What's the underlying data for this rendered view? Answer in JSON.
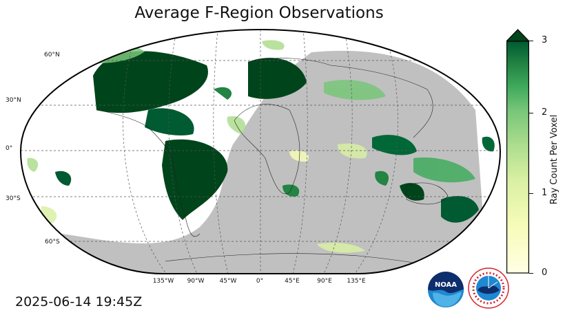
{
  "title": "Average F-Region Observations",
  "timestamp": "2025-06-14 19:45Z",
  "colorbar": {
    "label": "Ray Count Per Voxel",
    "ticks": [
      "0",
      "1",
      "2",
      "3"
    ],
    "min": 0,
    "max": 3,
    "extend": "max",
    "colors": {
      "low": "#ffffe5",
      "mid": "#78c679",
      "high": "#00441b"
    }
  },
  "lat_labels": [
    "60°N",
    "30°N",
    "0°",
    "30°S",
    "60°S"
  ],
  "lon_labels": [
    "135°W",
    "90°W",
    "45°W",
    "0°",
    "45°E",
    "90°E",
    "135°E"
  ],
  "logos": {
    "noaa": "NOAA",
    "nws": "NATIONAL WEATHER SERVICE"
  },
  "colors": {
    "night_shade": "#c0c0c0",
    "grid": "#555555",
    "frame": "#000000"
  }
}
